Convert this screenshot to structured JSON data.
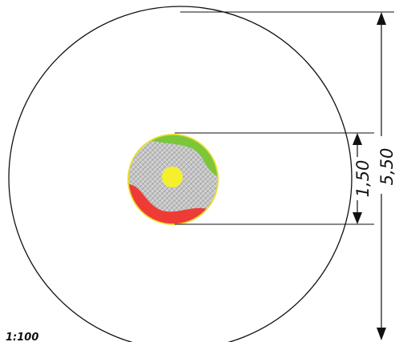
{
  "plan": {
    "scale": "1:100",
    "outer_zone_diameter": "5,50",
    "equipment_diameter": "1,50"
  },
  "colors": {
    "outline": "#111111",
    "zone_green": "#7cc63a",
    "zone_red": "#ef3b36",
    "surface_grey": "#c3c3c3",
    "center_yellow": "#f6f02c",
    "rim_yellow": "#f2e63a"
  }
}
